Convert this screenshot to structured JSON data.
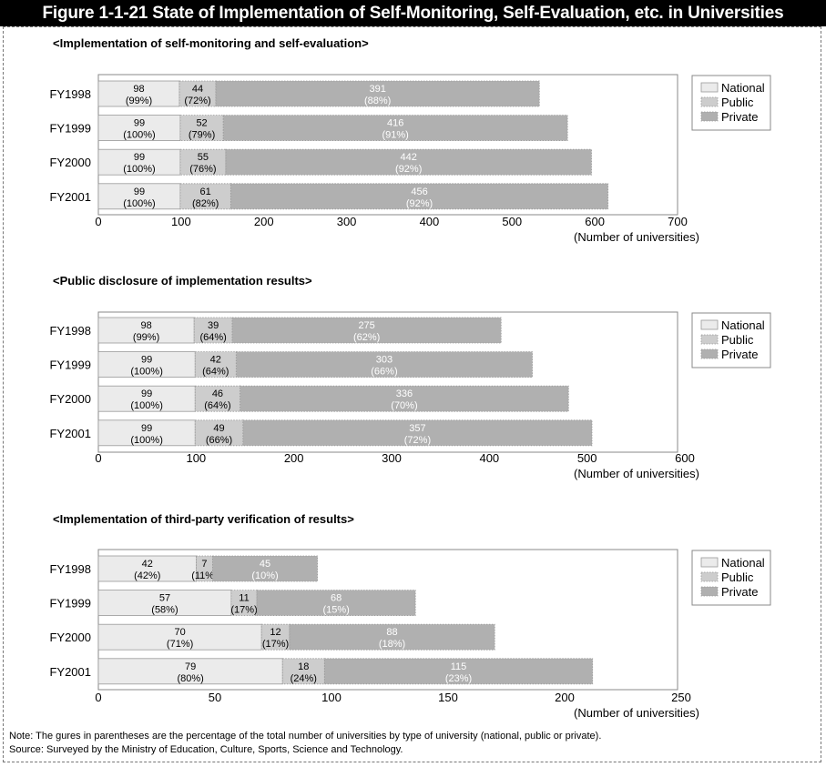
{
  "title": "Figure 1-1-21  State of Implementation of Self-Monitoring, Self-Evaluation, etc. in Universities",
  "note": "Note: The gures in parentheses are the percentage of the total number of universities by type of university (national, public or private).",
  "source": "Source: Surveyed by the Ministry of Education, Culture, Sports, Science and Technology.",
  "colors": {
    "National": "#ebebeb",
    "Public": "#cdcdcd",
    "Private": "#b0b0b0"
  },
  "chart_data": [
    {
      "type": "bar",
      "orientation": "horizontal",
      "stacked": true,
      "title": "<Implementation of self-monitoring and self-evaluation>",
      "xlabel": "(Number of universities)",
      "xlim": [
        0,
        700
      ],
      "xticks": [
        0,
        100,
        200,
        300,
        400,
        500,
        600,
        700
      ],
      "categories": [
        "FY1998",
        "FY1999",
        "FY2000",
        "FY2001"
      ],
      "legend": [
        "National",
        "Public",
        "Private"
      ],
      "legend_position": "right",
      "series": [
        {
          "name": "National",
          "values": [
            98,
            99,
            99,
            99
          ],
          "percents": [
            "(99%)",
            "(100%)",
            "(100%)",
            "(100%)"
          ]
        },
        {
          "name": "Public",
          "values": [
            44,
            52,
            55,
            61
          ],
          "percents": [
            "(72%)",
            "(79%)",
            "(76%)",
            "(82%)"
          ]
        },
        {
          "name": "Private",
          "values": [
            391,
            416,
            442,
            456
          ],
          "percents": [
            "(88%)",
            "(91%)",
            "(92%)",
            "(92%)"
          ]
        }
      ]
    },
    {
      "type": "bar",
      "orientation": "horizontal",
      "stacked": true,
      "title": "<Public disclosure of implementation results>",
      "xlabel": "(Number of universities)",
      "xlim": [
        0,
        600
      ],
      "xticks": [
        0,
        100,
        200,
        300,
        400,
        500,
        600
      ],
      "categories": [
        "FY1998",
        "FY1999",
        "FY2000",
        "FY2001"
      ],
      "legend": [
        "National",
        "Public",
        "Private"
      ],
      "legend_position": "right",
      "series": [
        {
          "name": "National",
          "values": [
            98,
            99,
            99,
            99
          ],
          "percents": [
            "(99%)",
            "(100%)",
            "(100%)",
            "(100%)"
          ]
        },
        {
          "name": "Public",
          "values": [
            39,
            42,
            46,
            49
          ],
          "percents": [
            "(64%)",
            "(64%)",
            "(64%)",
            "(66%)"
          ]
        },
        {
          "name": "Private",
          "values": [
            275,
            303,
            336,
            357
          ],
          "percents": [
            "(62%)",
            "(66%)",
            "(70%)",
            "(72%)"
          ]
        }
      ]
    },
    {
      "type": "bar",
      "orientation": "horizontal",
      "stacked": true,
      "title": "<Implementation of third-party verification of results>",
      "xlabel": "(Number of universities)",
      "xlim": [
        0,
        250
      ],
      "xticks": [
        0,
        50,
        100,
        150,
        200,
        250
      ],
      "categories": [
        "FY1998",
        "FY1999",
        "FY2000",
        "FY2001"
      ],
      "legend": [
        "National",
        "Public",
        "Private"
      ],
      "legend_position": "right",
      "series": [
        {
          "name": "National",
          "values": [
            42,
            57,
            70,
            79
          ],
          "percents": [
            "(42%)",
            "(58%)",
            "(71%)",
            "(80%)"
          ]
        },
        {
          "name": "Public",
          "values": [
            7,
            11,
            12,
            18
          ],
          "percents": [
            "(11%)",
            "(17%)",
            "(17%)",
            "(24%)"
          ]
        },
        {
          "name": "Private",
          "values": [
            45,
            68,
            88,
            115
          ],
          "percents": [
            "(10%)",
            "(15%)",
            "(18%)",
            "(23%)"
          ]
        }
      ]
    }
  ]
}
